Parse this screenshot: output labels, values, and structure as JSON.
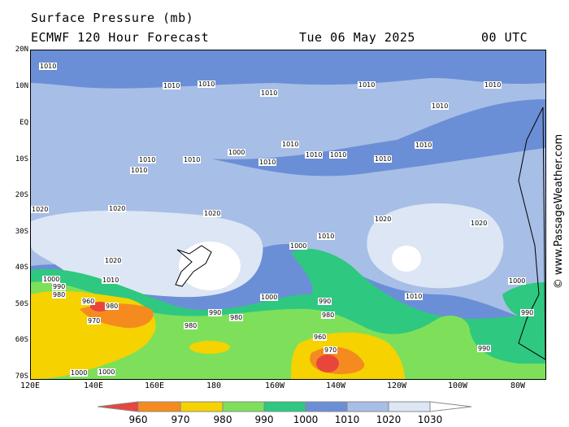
{
  "header": {
    "title": "Surface Pressure (mb)",
    "model": "ECMWF 120 Hour Forecast",
    "date": "Tue 06 May 2025",
    "time": "00 UTC"
  },
  "credit": "© www.PassageWeather.com",
  "axes": {
    "lat": [
      "20N",
      "10N",
      "EQ",
      "10S",
      "20S",
      "30S",
      "40S",
      "50S",
      "60S",
      "70S"
    ],
    "lon": [
      "120E",
      "140E",
      "160E",
      "180",
      "160W",
      "140W",
      "120W",
      "100W",
      "80W"
    ]
  },
  "legend": {
    "values": [
      "960",
      "970",
      "980",
      "990",
      "1000",
      "1010",
      "1020",
      "1030"
    ],
    "colors": [
      "#e8453c",
      "#f58b1f",
      "#f5d200",
      "#7ee05a",
      "#2ec880",
      "#6b8fd6",
      "#a7bee6",
      "#dde6f4"
    ]
  },
  "contour_labels": [
    "1010",
    "1010",
    "1010",
    "1010",
    "1010",
    "1010",
    "1010",
    "1010",
    "1010",
    "1010",
    "1010",
    "1010",
    "1010",
    "1020",
    "1020",
    "1020",
    "1020",
    "1020",
    "1000",
    "1010",
    "1020",
    "1010",
    "1000",
    "1000",
    "1010",
    "990",
    "980",
    "960",
    "980",
    "970",
    "990",
    "980",
    "1000",
    "990",
    "980",
    "960",
    "970",
    "980",
    "990",
    "1000",
    "1000",
    "990",
    "1010",
    "1000",
    "1010",
    "1010"
  ]
}
